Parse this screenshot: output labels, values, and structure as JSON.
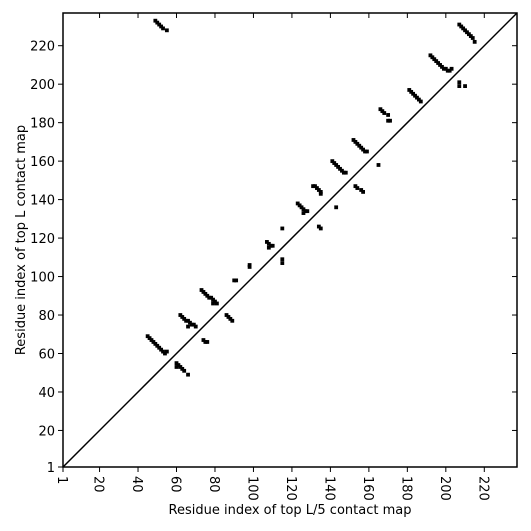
{
  "chart_data": {
    "type": "scatter",
    "xlabel": "Residue index of top L/5 contact map",
    "ylabel": "Residue index of top L contact map",
    "xlim": [
      1,
      237
    ],
    "ylim": [
      1,
      237
    ],
    "xticks": [
      1,
      20,
      40,
      60,
      80,
      100,
      120,
      140,
      160,
      180,
      200,
      220
    ],
    "yticks": [
      1,
      20,
      40,
      60,
      80,
      100,
      120,
      140,
      160,
      180,
      200,
      220
    ],
    "series": [
      {
        "color": "#000000",
        "x": [
          49,
          50,
          51,
          52,
          53,
          55,
          45,
          46,
          47,
          48,
          49,
          50,
          51,
          52,
          53,
          54,
          55,
          60,
          60,
          61,
          62,
          63,
          64,
          66,
          62,
          63,
          64,
          65,
          66,
          67,
          68,
          69,
          70,
          66,
          73,
          74,
          75,
          76,
          77,
          78,
          79,
          80,
          81,
          79,
          74,
          75,
          76,
          86,
          87,
          88,
          89,
          90,
          91,
          98,
          98,
          107,
          108,
          109,
          110,
          108,
          115,
          115,
          115,
          123,
          124,
          125,
          126,
          127,
          128,
          126,
          131,
          132,
          133,
          134,
          135,
          135,
          134,
          135,
          141,
          142,
          143,
          144,
          145,
          146,
          147,
          148,
          143,
          152,
          153,
          154,
          155,
          156,
          157,
          158,
          159,
          153,
          154,
          156,
          157,
          165,
          166,
          167,
          168,
          170,
          170,
          171,
          181,
          182,
          183,
          184,
          185,
          186,
          187,
          192,
          193,
          194,
          195,
          196,
          197,
          198,
          199,
          200,
          201,
          202,
          203,
          207,
          208,
          209,
          210,
          211,
          212,
          213,
          214,
          215,
          207,
          207,
          210
        ],
        "y": [
          233,
          232,
          231,
          230,
          229,
          228,
          69,
          68,
          67,
          66,
          65,
          64,
          63,
          62,
          61,
          60,
          61,
          55,
          53,
          54,
          53,
          52,
          51,
          49,
          80,
          79,
          78,
          77,
          77,
          76,
          75,
          75,
          74,
          74,
          93,
          92,
          91,
          90,
          89,
          89,
          88,
          87,
          86,
          86,
          67,
          66,
          66,
          80,
          79,
          78,
          77,
          98,
          98,
          106,
          105,
          118,
          117,
          116,
          116,
          115,
          125,
          109,
          107,
          138,
          137,
          136,
          135,
          134,
          134,
          133,
          147,
          147,
          146,
          145,
          144,
          143,
          126,
          125,
          160,
          159,
          158,
          157,
          156,
          155,
          154,
          154,
          136,
          171,
          170,
          169,
          168,
          167,
          166,
          165,
          165,
          147,
          146,
          145,
          144,
          158,
          187,
          186,
          185,
          184,
          181,
          181,
          197,
          196,
          195,
          194,
          193,
          192,
          191,
          215,
          214,
          213,
          212,
          211,
          210,
          209,
          208,
          208,
          207,
          207,
          208,
          231,
          230,
          229,
          228,
          227,
          226,
          225,
          224,
          222,
          201,
          199,
          199
        ]
      }
    ]
  }
}
